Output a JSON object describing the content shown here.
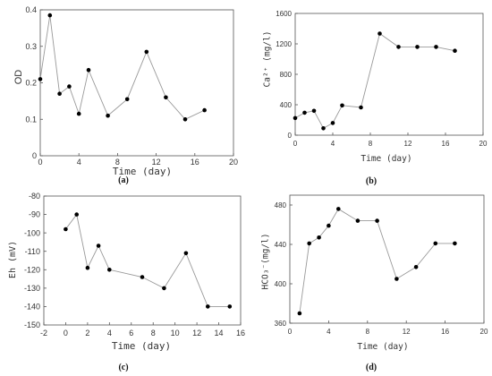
{
  "chart_data": [
    {
      "type": "line",
      "panel": "(a)",
      "xlabel": "Time (day)",
      "ylabel": "OD",
      "xlim": [
        0,
        20
      ],
      "ylim": [
        0,
        0.4
      ],
      "xticks": [
        0,
        4,
        8,
        12,
        16,
        20
      ],
      "yticks": [
        0,
        0.1,
        0.2,
        0.3,
        0.4
      ],
      "x": [
        0,
        1,
        2,
        3,
        4,
        5,
        7,
        9,
        11,
        13,
        15,
        17
      ],
      "y": [
        0.21,
        0.385,
        0.17,
        0.19,
        0.115,
        0.235,
        0.11,
        0.155,
        0.285,
        0.16,
        0.1,
        0.125
      ],
      "grid": false,
      "line_color": "#999999",
      "marker_color": "#000000"
    },
    {
      "type": "line",
      "panel": "(b)",
      "xlabel": "Time (day)",
      "ylabel": "Ca²⁺ (mg/l)",
      "xlim": [
        0,
        20
      ],
      "ylim": [
        0,
        1600
      ],
      "xticks": [
        0,
        4,
        8,
        12,
        16,
        20
      ],
      "yticks": [
        0,
        400,
        800,
        1200,
        1600
      ],
      "x": [
        0,
        1,
        2,
        3,
        4,
        5,
        7,
        9,
        11,
        13,
        15,
        17
      ],
      "y": [
        225,
        295,
        320,
        90,
        160,
        390,
        365,
        1335,
        1160,
        1160,
        1160,
        1110
      ],
      "grid": false,
      "line_color": "#999999",
      "marker_color": "#000000"
    },
    {
      "type": "line",
      "panel": "(c)",
      "xlabel": "Time (day)",
      "ylabel": "Eh (mV)",
      "xlim": [
        -2,
        16
      ],
      "ylim": [
        -150,
        -80
      ],
      "xticks": [
        -2,
        0,
        2,
        4,
        6,
        8,
        10,
        12,
        14,
        16
      ],
      "yticks": [
        -80,
        -90,
        -100,
        -110,
        -120,
        -130,
        -140,
        -150
      ],
      "x": [
        0,
        1,
        2,
        3,
        4,
        7,
        9,
        11,
        13,
        15
      ],
      "y": [
        -98,
        -90,
        -119,
        -107,
        -120,
        -124,
        -130,
        -111,
        -140,
        -140
      ],
      "grid": false,
      "line_color": "#999999",
      "marker_color": "#000000"
    },
    {
      "type": "line",
      "panel": "(d)",
      "xlabel": "Time (day)",
      "ylabel": "HCO₃⁻(mg/l)",
      "xlim": [
        0,
        20
      ],
      "ylim": [
        360,
        490
      ],
      "xticks": [
        0,
        4,
        8,
        12,
        16,
        20
      ],
      "yticks": [
        360,
        400,
        440,
        480
      ],
      "x": [
        1,
        2,
        3,
        4,
        5,
        7,
        9,
        11,
        13,
        15,
        17
      ],
      "y": [
        370,
        441,
        447,
        459,
        476,
        464,
        464,
        405,
        417,
        441,
        441
      ],
      "grid": false,
      "line_color": "#999999",
      "marker_color": "#000000"
    }
  ]
}
